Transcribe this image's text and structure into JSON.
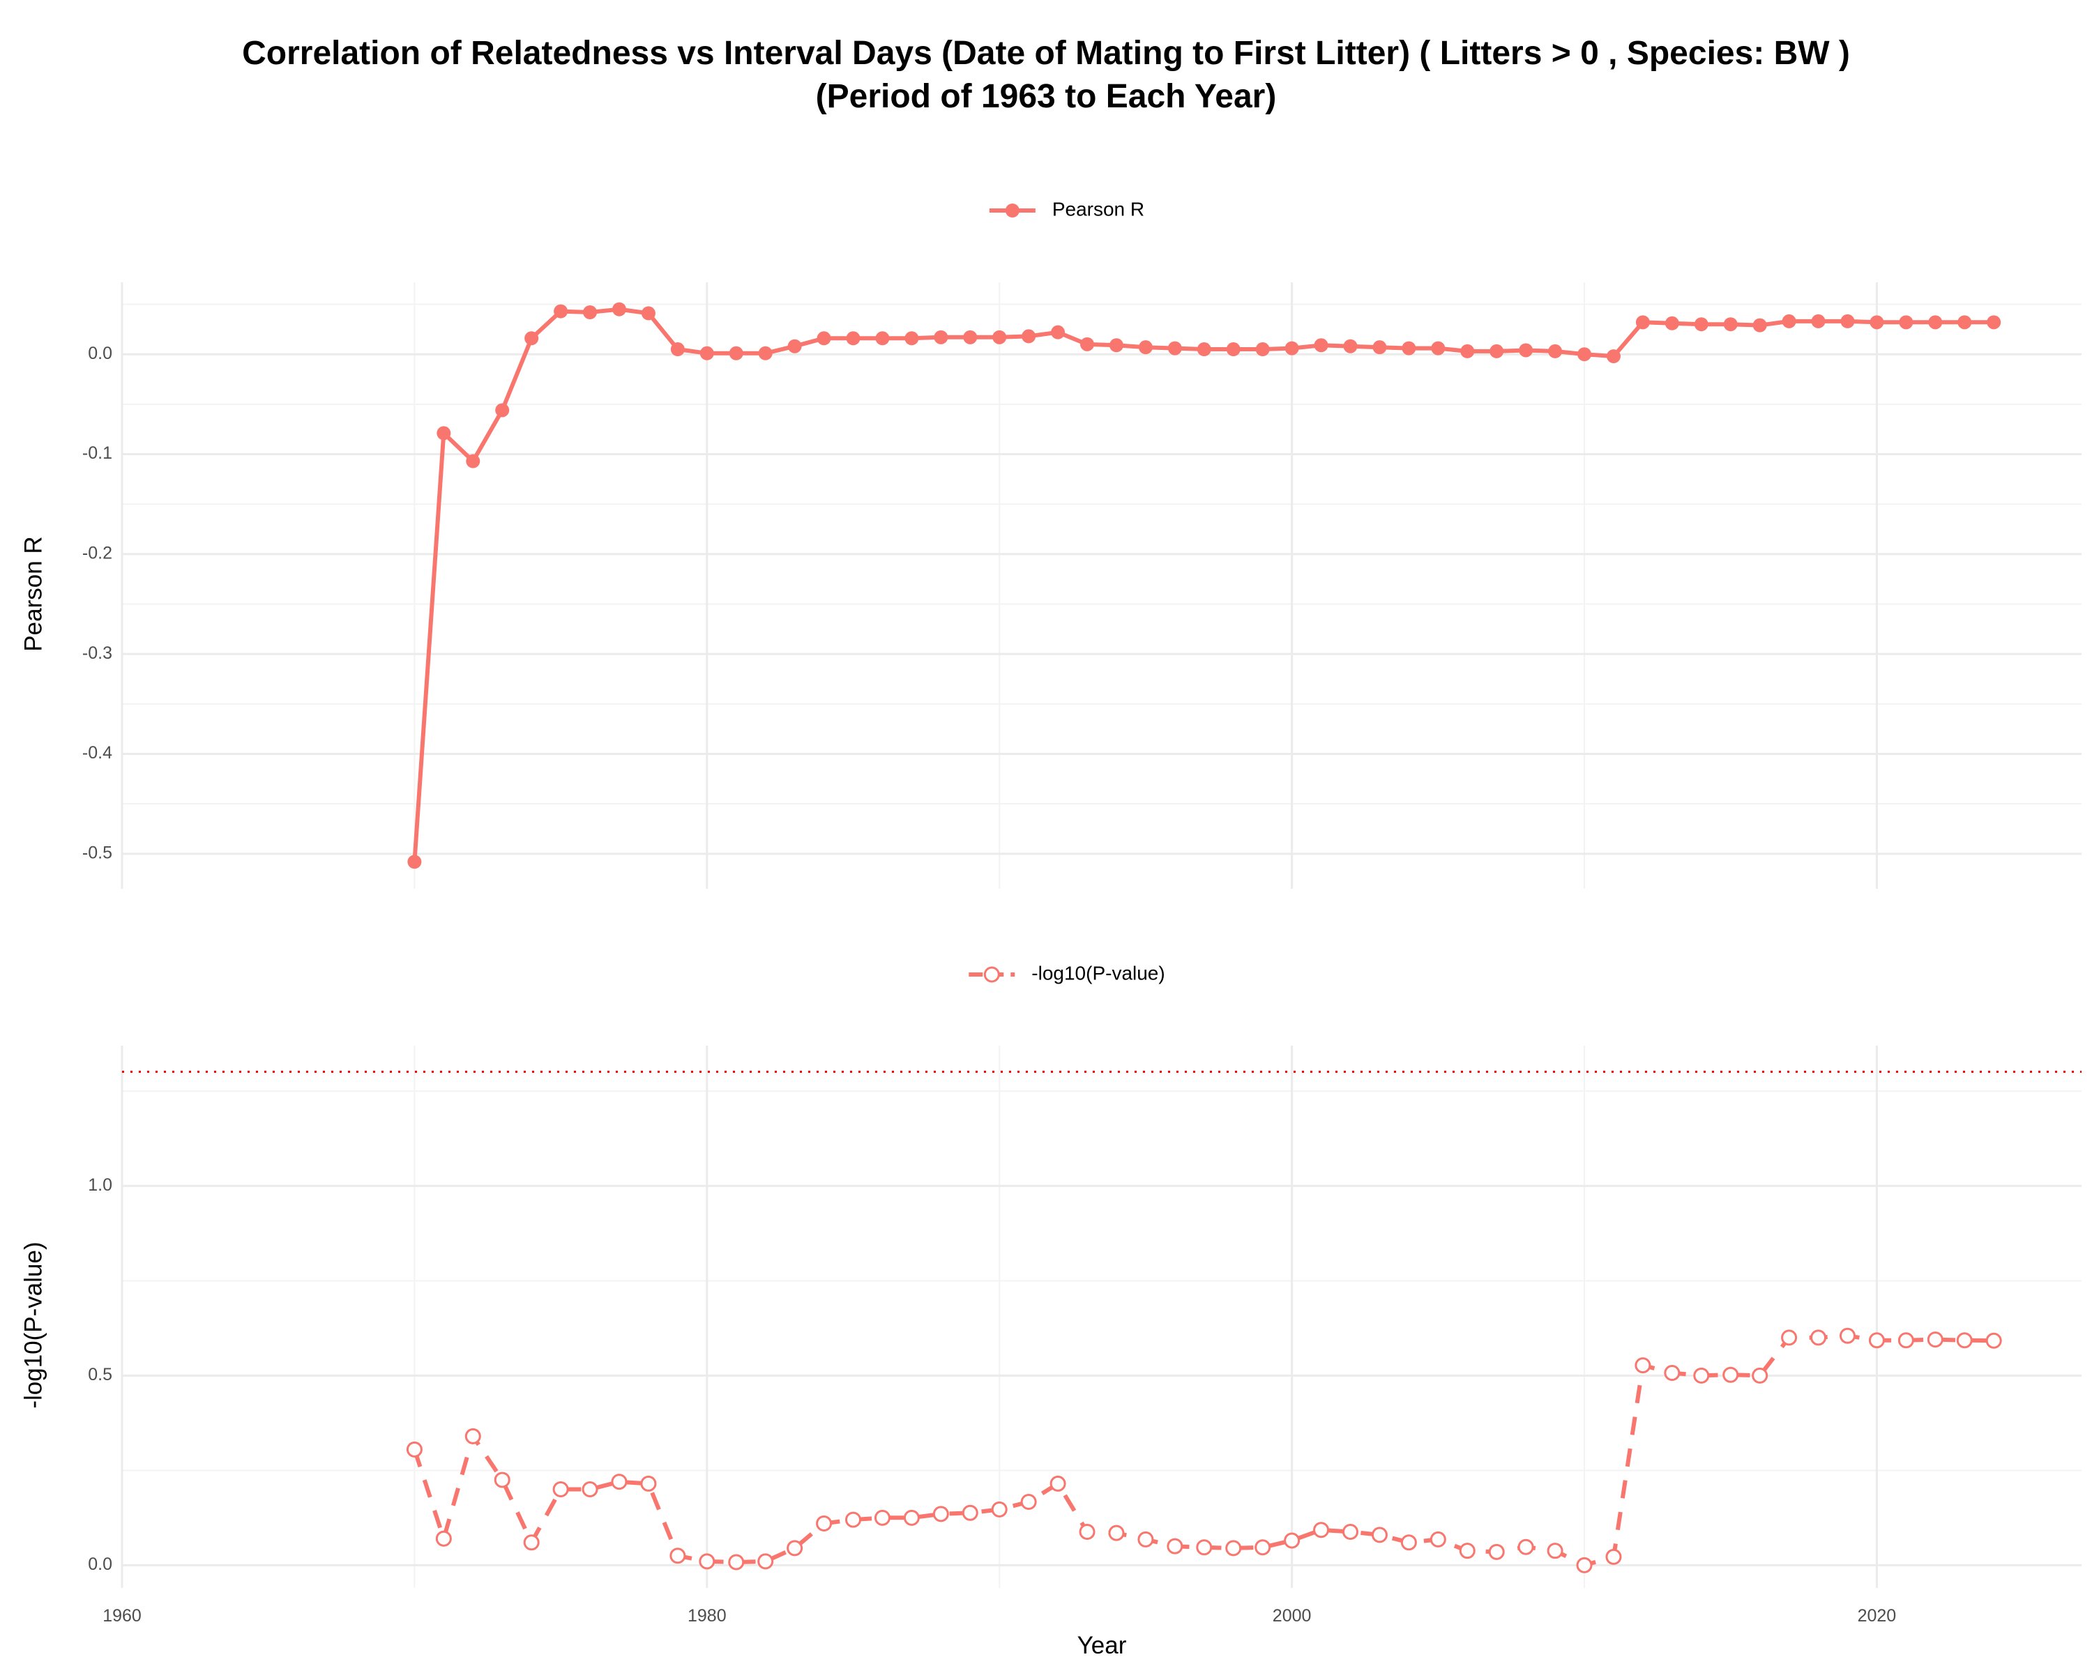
{
  "title": {
    "line1": "Correlation of Relatedness vs Interval Days (Date of Mating to First Litter) ( Litters > 0 , Species: BW )",
    "line2": "(Period of 1963 to Each Year)"
  },
  "colors": {
    "series": "#F8766D",
    "threshold": "#FF0000",
    "grid": "#EBEBEB"
  },
  "chart_data": [
    {
      "type": "line",
      "legend": "Pearson R",
      "ylabel": "Pearson R",
      "xlabel": "",
      "xlim": [
        1960,
        2027
      ],
      "ylim": [
        -0.535,
        0.072
      ],
      "xticks": [
        1960,
        1980,
        2000,
        2020
      ],
      "yticks": [
        -0.5,
        -0.4,
        -0.3,
        -0.2,
        -0.1,
        0.0
      ],
      "ytick_labels": [
        "-0.5",
        "-0.4",
        "-0.3",
        "-0.2",
        "-0.1",
        "0.0"
      ],
      "marker": "filled-circle",
      "line_style": "solid",
      "x": [
        1970,
        1971,
        1972,
        1973,
        1974,
        1975,
        1976,
        1977,
        1978,
        1979,
        1980,
        1981,
        1982,
        1983,
        1984,
        1985,
        1986,
        1987,
        1988,
        1989,
        1990,
        1991,
        1992,
        1993,
        1994,
        1995,
        1996,
        1997,
        1998,
        1999,
        2000,
        2001,
        2002,
        2003,
        2004,
        2005,
        2006,
        2007,
        2008,
        2009,
        2010,
        2011,
        2012,
        2013,
        2014,
        2015,
        2016,
        2017,
        2018,
        2019,
        2020,
        2021,
        2022,
        2023,
        2024
      ],
      "y": [
        -0.508,
        -0.079,
        -0.107,
        -0.056,
        0.016,
        0.043,
        0.042,
        0.045,
        0.041,
        0.005,
        0.001,
        0.001,
        0.001,
        0.008,
        0.016,
        0.016,
        0.016,
        0.016,
        0.017,
        0.017,
        0.017,
        0.018,
        0.022,
        0.01,
        0.009,
        0.007,
        0.006,
        0.005,
        0.005,
        0.005,
        0.006,
        0.009,
        0.008,
        0.007,
        0.006,
        0.006,
        0.003,
        0.003,
        0.004,
        0.003,
        0.0,
        -0.002,
        0.032,
        0.031,
        0.03,
        0.03,
        0.029,
        0.033,
        0.033,
        0.033,
        0.032,
        0.032,
        0.032,
        0.032,
        0.032
      ]
    },
    {
      "type": "line",
      "legend": "-log10(P-value)",
      "ylabel": "-log10(P-value)",
      "xlabel": "Year",
      "xlim": [
        1960,
        2027
      ],
      "ylim": [
        -0.06,
        1.37
      ],
      "xticks": [
        1960,
        1980,
        2000,
        2020
      ],
      "yticks": [
        0.0,
        0.5,
        1.0
      ],
      "ytick_labels": [
        "0.0",
        "0.5",
        "1.0"
      ],
      "threshold_y": 1.301,
      "marker": "open-circle",
      "line_style": "dashed",
      "x": [
        1970,
        1971,
        1972,
        1973,
        1974,
        1975,
        1976,
        1977,
        1978,
        1979,
        1980,
        1981,
        1982,
        1983,
        1984,
        1985,
        1986,
        1987,
        1988,
        1989,
        1990,
        1991,
        1992,
        1993,
        1994,
        1995,
        1996,
        1997,
        1998,
        1999,
        2000,
        2001,
        2002,
        2003,
        2004,
        2005,
        2006,
        2007,
        2008,
        2009,
        2010,
        2011,
        2012,
        2013,
        2014,
        2015,
        2016,
        2017,
        2018,
        2019,
        2020,
        2021,
        2022,
        2023,
        2024
      ],
      "y": [
        0.305,
        0.07,
        0.34,
        0.225,
        0.06,
        0.2,
        0.2,
        0.22,
        0.215,
        0.025,
        0.01,
        0.008,
        0.01,
        0.045,
        0.11,
        0.12,
        0.125,
        0.125,
        0.135,
        0.138,
        0.147,
        0.167,
        0.215,
        0.088,
        0.085,
        0.068,
        0.05,
        0.047,
        0.045,
        0.047,
        0.065,
        0.093,
        0.088,
        0.08,
        0.06,
        0.068,
        0.038,
        0.035,
        0.048,
        0.038,
        0.0,
        0.022,
        0.527,
        0.507,
        0.5,
        0.502,
        0.5,
        0.6,
        0.6,
        0.605,
        0.593,
        0.593,
        0.595,
        0.593,
        0.592
      ]
    }
  ]
}
